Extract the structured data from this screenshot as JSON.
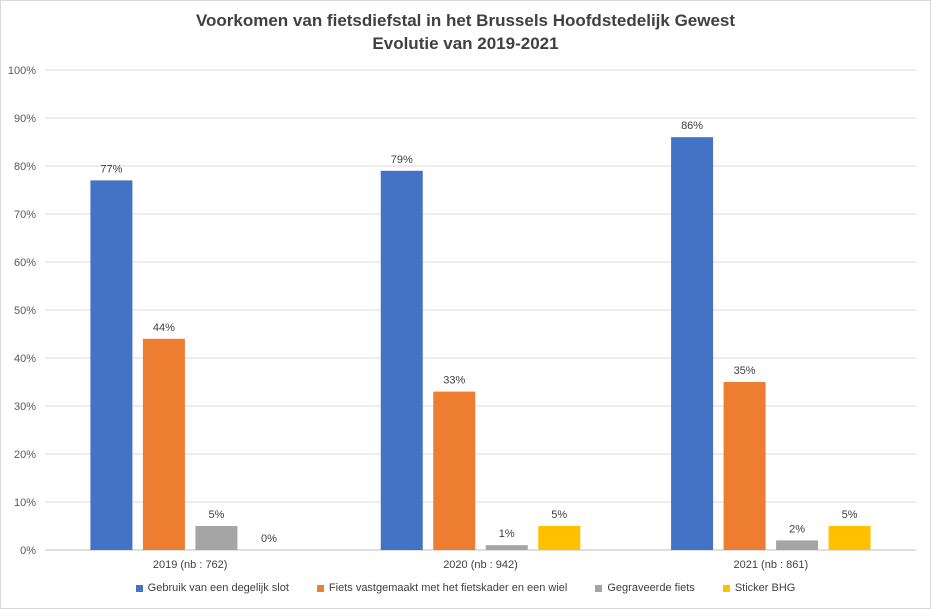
{
  "chart_data": {
    "type": "bar",
    "title": "Voorkomen van fietsdiefstal in het Brussels Hoofdstedelijk Gewest",
    "subtitle": "Evolutie van 2019-2021",
    "categories": [
      "2019 (nb : 762)",
      "2020 (nb : 942)",
      "2021 (nb : 861)"
    ],
    "series": [
      {
        "name": "Gebruik van een degelijk slot",
        "color": "#4472c4",
        "values": [
          77,
          79,
          86
        ],
        "labels": [
          "77%",
          "79%",
          "86%"
        ]
      },
      {
        "name": "Fiets vastgemaakt met het fietskader en een wiel",
        "color": "#ed7d31",
        "values": [
          44,
          33,
          35
        ],
        "labels": [
          "44%",
          "33%",
          "35%"
        ]
      },
      {
        "name": "Gegraveerde fiets",
        "color": "#a5a5a5",
        "values": [
          5,
          1,
          2
        ],
        "labels": [
          "5%",
          "1%",
          "2%"
        ]
      },
      {
        "name": "Sticker BHG",
        "color": "#ffc000",
        "values": [
          0,
          5,
          5
        ],
        "labels": [
          "0%",
          "5%",
          "5%"
        ]
      }
    ],
    "yticks": [
      "0%",
      "10%",
      "20%",
      "30%",
      "40%",
      "50%",
      "60%",
      "70%",
      "80%",
      "90%",
      "100%"
    ],
    "ylim": [
      0,
      100
    ],
    "grid": true,
    "legend": "bottom"
  }
}
